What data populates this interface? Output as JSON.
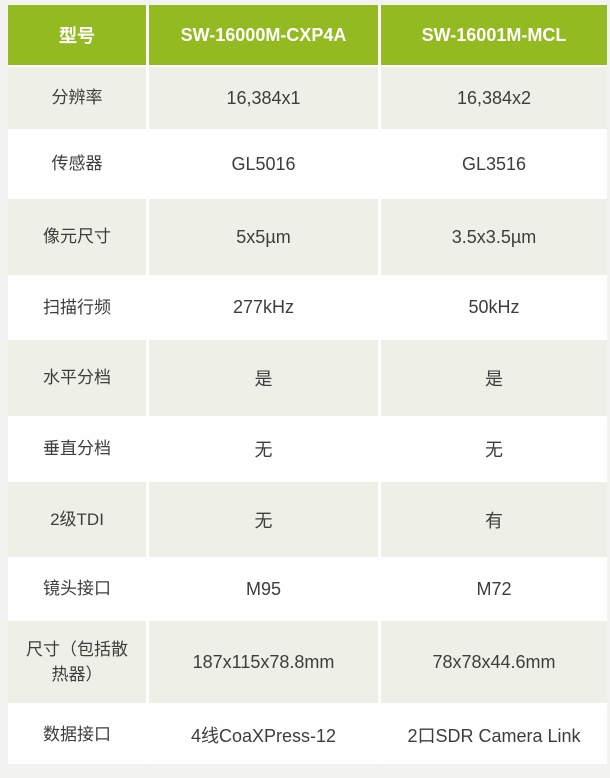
{
  "colors": {
    "page_bg": "#F2F3F0",
    "header_green": "#93BA20",
    "header_text": "#FFFFFF",
    "row_beige": "#EEF0E8",
    "row_white": "#FEFEFE",
    "body_text": "#3D3D3D",
    "divider": "#FFFFFF"
  },
  "table": {
    "header": {
      "label": "型号",
      "cxp4a": "SW-16000M-CXP4A",
      "mcl": "SW-16001M-MCL"
    },
    "rows": [
      {
        "label": "分辨率",
        "cxp4a": "16,384x1",
        "mcl": "16,384x2"
      },
      {
        "label": "传感器",
        "cxp4a": "GL5016",
        "mcl": "GL3516"
      },
      {
        "label": "像元尺寸",
        "cxp4a": "5x5µm",
        "mcl": "3.5x3.5µm"
      },
      {
        "label": "扫描行频",
        "cxp4a": "277kHz",
        "mcl": "50kHz"
      },
      {
        "label": "水平分档",
        "cxp4a": "是",
        "mcl": "是"
      },
      {
        "label": "垂直分档",
        "cxp4a": "无",
        "mcl": "无"
      },
      {
        "label": "2级TDI",
        "cxp4a": "无",
        "mcl": "有"
      },
      {
        "label": "镜头接口",
        "cxp4a": "M95",
        "mcl": "M72"
      },
      {
        "label": "尺寸（包括散热器）",
        "cxp4a": "187x115x78.8mm",
        "mcl": "78x78x44.6mm"
      },
      {
        "label": "数据接口",
        "cxp4a": "4线CoaXPress-12",
        "mcl": "2口SDR Camera Link"
      }
    ]
  }
}
